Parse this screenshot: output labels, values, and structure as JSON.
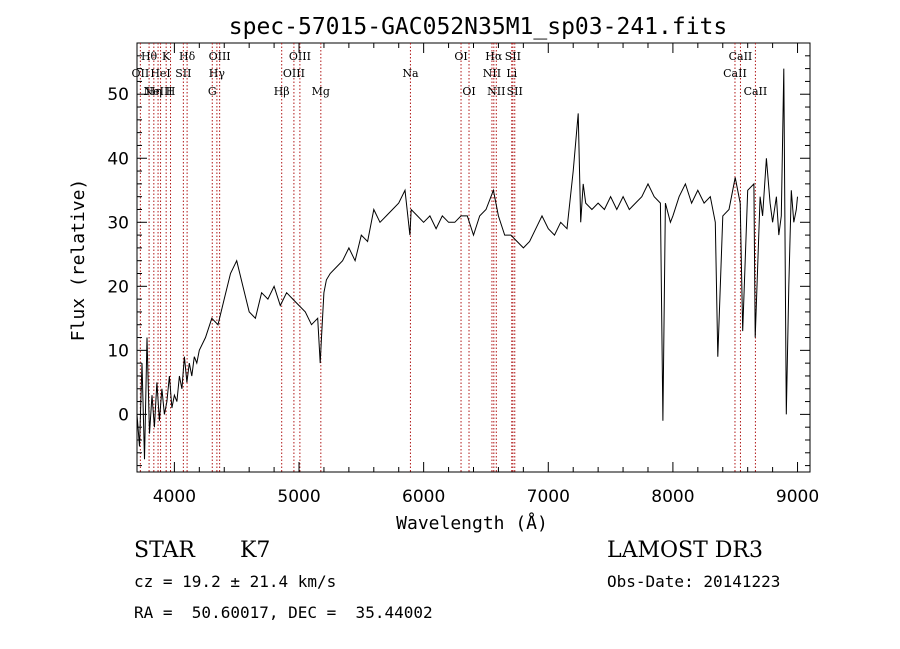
{
  "chart_data": {
    "type": "line",
    "title": "spec-57015-GAC052N35M1_sp03-241.fits",
    "xlabel": "Wavelength (Å)",
    "ylabel": "Flux (relative)",
    "xlim": [
      3700,
      9100
    ],
    "ylim": [
      -9,
      58
    ],
    "xticks": [
      4000,
      5000,
      6000,
      7000,
      8000,
      9000
    ],
    "yticks": [
      0,
      10,
      20,
      30,
      40,
      50
    ],
    "grid": false,
    "series": [
      {
        "name": "flux",
        "x": [
          3700,
          3720,
          3740,
          3760,
          3780,
          3800,
          3820,
          3840,
          3860,
          3880,
          3900,
          3920,
          3940,
          3960,
          3980,
          4000,
          4020,
          4040,
          4060,
          4080,
          4100,
          4120,
          4140,
          4160,
          4180,
          4200,
          4250,
          4300,
          4350,
          4400,
          4450,
          4500,
          4550,
          4600,
          4650,
          4700,
          4750,
          4800,
          4850,
          4900,
          4950,
          5000,
          5050,
          5100,
          5150,
          5170,
          5180,
          5200,
          5220,
          5250,
          5300,
          5350,
          5400,
          5450,
          5500,
          5550,
          5600,
          5650,
          5700,
          5750,
          5800,
          5850,
          5890,
          5900,
          5950,
          6000,
          6050,
          6100,
          6150,
          6200,
          6250,
          6300,
          6350,
          6400,
          6450,
          6500,
          6560,
          6600,
          6650,
          6700,
          6750,
          6800,
          6850,
          6900,
          6950,
          7000,
          7050,
          7100,
          7150,
          7200,
          7240,
          7260,
          7280,
          7300,
          7350,
          7400,
          7450,
          7500,
          7550,
          7600,
          7650,
          7700,
          7750,
          7800,
          7850,
          7900,
          7920,
          7940,
          7980,
          8000,
          8050,
          8100,
          8150,
          8200,
          8250,
          8300,
          8340,
          8360,
          8400,
          8450,
          8500,
          8540,
          8560,
          8600,
          8650,
          8660,
          8700,
          8720,
          8750,
          8780,
          8800,
          8830,
          8850,
          8870,
          8890,
          8910,
          8930,
          8950,
          8970,
          8990,
          9000
        ],
        "y": [
          0,
          -5,
          8,
          -7,
          12,
          -3,
          3,
          -2,
          5,
          -1,
          4,
          0,
          2,
          6,
          1,
          3,
          2,
          6,
          4,
          9,
          5,
          8,
          6,
          9,
          8,
          10,
          12,
          15,
          14,
          18,
          22,
          24,
          20,
          16,
          15,
          19,
          18,
          20,
          17,
          19,
          18,
          17,
          16,
          14,
          15,
          8,
          12,
          19,
          21,
          22,
          23,
          24,
          26,
          24,
          28,
          27,
          32,
          30,
          31,
          32,
          33,
          35,
          28,
          32,
          31,
          30,
          31,
          29,
          31,
          30,
          30,
          31,
          31,
          28,
          31,
          32,
          35,
          31,
          28,
          28,
          27,
          26,
          27,
          29,
          31,
          29,
          28,
          30,
          29,
          38,
          47,
          30,
          36,
          33,
          32,
          33,
          32,
          34,
          32,
          34,
          32,
          33,
          34,
          36,
          34,
          33,
          -1,
          33,
          30,
          31,
          34,
          36,
          33,
          35,
          33,
          34,
          30,
          9,
          31,
          32,
          37,
          33,
          13,
          35,
          36,
          12,
          34,
          31,
          40,
          33,
          30,
          34,
          28,
          31,
          54,
          0,
          20,
          35,
          30,
          32,
          34
        ]
      }
    ],
    "line_markers": [
      {
        "x": 3727,
        "labels": [
          "OII"
        ],
        "row": 1
      },
      {
        "x": 3797,
        "labels": [
          "Hθ"
        ],
        "row": 0
      },
      {
        "x": 3835,
        "labels": [
          "Hη"
        ],
        "row": 2
      },
      {
        "x": 3869,
        "labels": [
          "NeIII"
        ],
        "row": 2
      },
      {
        "x": 3889,
        "labels": [
          "HeI"
        ],
        "row": 1
      },
      {
        "x": 3934,
        "labels": [
          "K"
        ],
        "row": 0
      },
      {
        "x": 3969,
        "labels": [
          "H"
        ],
        "row": 2
      },
      {
        "x": 4072,
        "labels": [
          "SII"
        ],
        "row": 1
      },
      {
        "x": 4102,
        "labels": [
          "Hδ"
        ],
        "row": 0
      },
      {
        "x": 4304,
        "labels": [
          "G"
        ],
        "row": 2
      },
      {
        "x": 4341,
        "labels": [
          "Hγ"
        ],
        "row": 1
      },
      {
        "x": 4363,
        "labels": [
          "OIII"
        ],
        "row": 0
      },
      {
        "x": 4861,
        "labels": [
          "Hβ"
        ],
        "row": 2
      },
      {
        "x": 4959,
        "labels": [
          "OIII"
        ],
        "row": 1
      },
      {
        "x": 5007,
        "labels": [
          "OIII"
        ],
        "row": 0
      },
      {
        "x": 5175,
        "labels": [
          "Mg"
        ],
        "row": 2
      },
      {
        "x": 5894,
        "labels": [
          "Na"
        ],
        "row": 1
      },
      {
        "x": 6300,
        "labels": [
          "OI"
        ],
        "row": 0
      },
      {
        "x": 6364,
        "labels": [
          "OI"
        ],
        "row": 2
      },
      {
        "x": 6548,
        "labels": [
          "NII"
        ],
        "row": 1
      },
      {
        "x": 6563,
        "labels": [
          "Hα"
        ],
        "row": 0
      },
      {
        "x": 6583,
        "labels": [
          "NII"
        ],
        "row": 2
      },
      {
        "x": 6707,
        "labels": [
          "Li"
        ],
        "row": 1
      },
      {
        "x": 6716,
        "labels": [
          "SII"
        ],
        "row": 0
      },
      {
        "x": 6731,
        "labels": [
          "SII"
        ],
        "row": 2
      },
      {
        "x": 8498,
        "labels": [
          "CaII"
        ],
        "row": 1
      },
      {
        "x": 8542,
        "labels": [
          "CaII"
        ],
        "row": 0
      },
      {
        "x": 8662,
        "labels": [
          "CaII"
        ],
        "row": 2
      }
    ],
    "marker_color": "#b01818",
    "line_color": "#000000"
  },
  "info": {
    "object_class": "STAR",
    "subclass": "K7",
    "survey": "LAMOST DR3",
    "redshift": "cz = 19.2 ± 21.4 km/s",
    "obs_date": "Obs-Date: 20141223",
    "coords": "RA =  50.60017, DEC =  35.44002"
  }
}
